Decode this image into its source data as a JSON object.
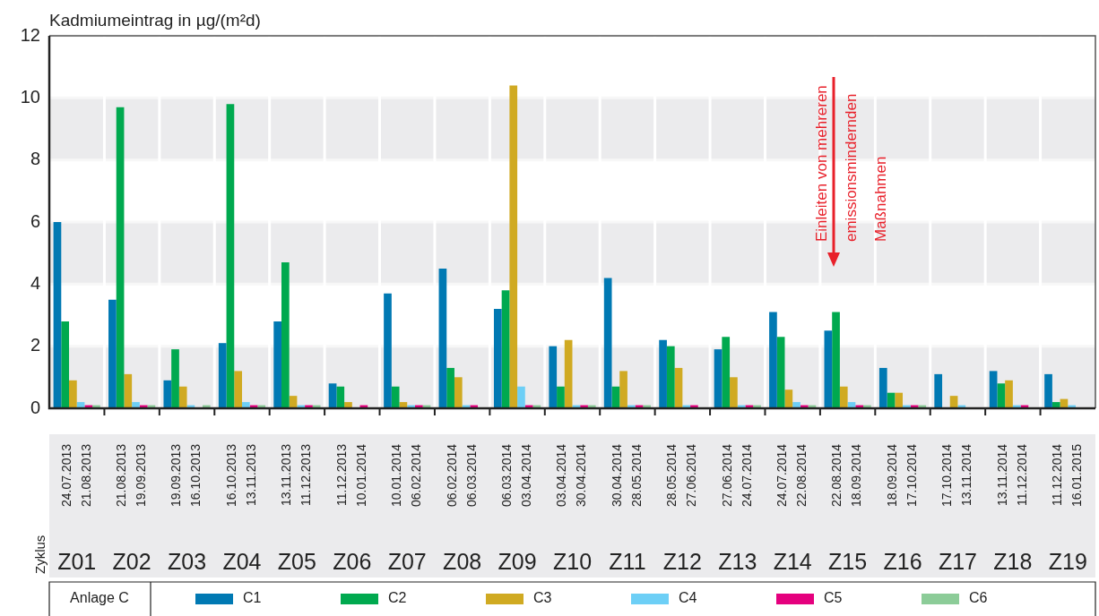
{
  "chart_data": {
    "type": "bar",
    "ylabel": "Kadmiumeintrag in µg/(m²d)",
    "legend_title": "Anlage C",
    "categories": [
      "Z01",
      "Z02",
      "Z03",
      "Z04",
      "Z05",
      "Z06",
      "Z07",
      "Z08",
      "Z09",
      "Z10",
      "Z11",
      "Z12",
      "Z13",
      "Z14",
      "Z15",
      "Z16",
      "Z17",
      "Z18",
      "Z19"
    ],
    "series": [
      {
        "name": "C1",
        "color": "#0079b3",
        "values": [
          6.0,
          3.5,
          0.9,
          2.1,
          2.8,
          0.8,
          3.7,
          4.5,
          3.2,
          2.0,
          4.2,
          2.2,
          1.9,
          3.1,
          2.5,
          1.3,
          1.1,
          1.2,
          1.1
        ]
      },
      {
        "name": "C2",
        "color": "#00a94f",
        "values": [
          2.8,
          9.7,
          1.9,
          9.8,
          4.7,
          0.7,
          0.7,
          1.3,
          3.8,
          0.7,
          0.7,
          2.0,
          2.3,
          2.3,
          3.1,
          0.5,
          null,
          0.8,
          0.2
        ]
      },
      {
        "name": "C3",
        "color": "#d0aa22",
        "values": [
          0.9,
          1.1,
          0.7,
          1.2,
          0.4,
          0.2,
          0.2,
          1.0,
          10.4,
          2.2,
          1.2,
          1.3,
          1.0,
          0.6,
          0.7,
          0.5,
          0.4,
          0.9,
          0.3
        ]
      },
      {
        "name": "C4",
        "color": "#6dcff6",
        "values": [
          0.2,
          0.2,
          0.1,
          0.2,
          0.1,
          null,
          0.1,
          0.1,
          0.7,
          0.1,
          0.1,
          0.1,
          0.1,
          0.2,
          0.2,
          0.1,
          0.1,
          0.1,
          0.1
        ]
      },
      {
        "name": "C5",
        "color": "#e5007e",
        "values": [
          0.1,
          0.1,
          null,
          0.1,
          0.1,
          0.1,
          0.1,
          0.1,
          0.1,
          0.1,
          0.1,
          0.1,
          0.1,
          0.1,
          0.1,
          0.1,
          null,
          0.1,
          null
        ]
      },
      {
        "name": "C6",
        "color": "#8ccc98",
        "values": [
          0.1,
          0.1,
          0.1,
          0.1,
          0.1,
          null,
          0.1,
          null,
          0.1,
          0.1,
          0.1,
          null,
          0.1,
          0.1,
          0.1,
          0.1,
          null,
          null,
          null
        ]
      }
    ],
    "ylim": [
      0,
      12
    ],
    "yticks": [
      0,
      2,
      4,
      6,
      8,
      10,
      12
    ],
    "grid": true,
    "legend": "bottom",
    "annotations": [
      "24.07.2013\n21.08.2013",
      "21.08.2013\n19.09.2013",
      "19.09.2013\n16.10.2013",
      "16.10.2013\n13.11.2013",
      "13.11.2013\n11.12.2013",
      "11.12.2013\n10.01.2014",
      "10.01.2014\n06.02.2014",
      "06.02.2014\n06.03.2014",
      "06.03.2014\n03.04.2014",
      "03.04.2014\n30.04.2014",
      "30.04.2014\n28.05.2014",
      "28.05.2014\n27.06.2014",
      "27.06.2014\n24.07.2014",
      "24.07.2014\n22.08.2014",
      "22.08.2014\n18.09.2014",
      "18.09.2014\n17.10.2014",
      "17.10.2014\n13.11.2014",
      "13.11.2014\n11.12.2014",
      "11.12.2014\n16.01.2015",
      "Einleiten von mehreren\nemissionsmindernden\nMaßnahmen",
      "Zyklus"
    ]
  }
}
